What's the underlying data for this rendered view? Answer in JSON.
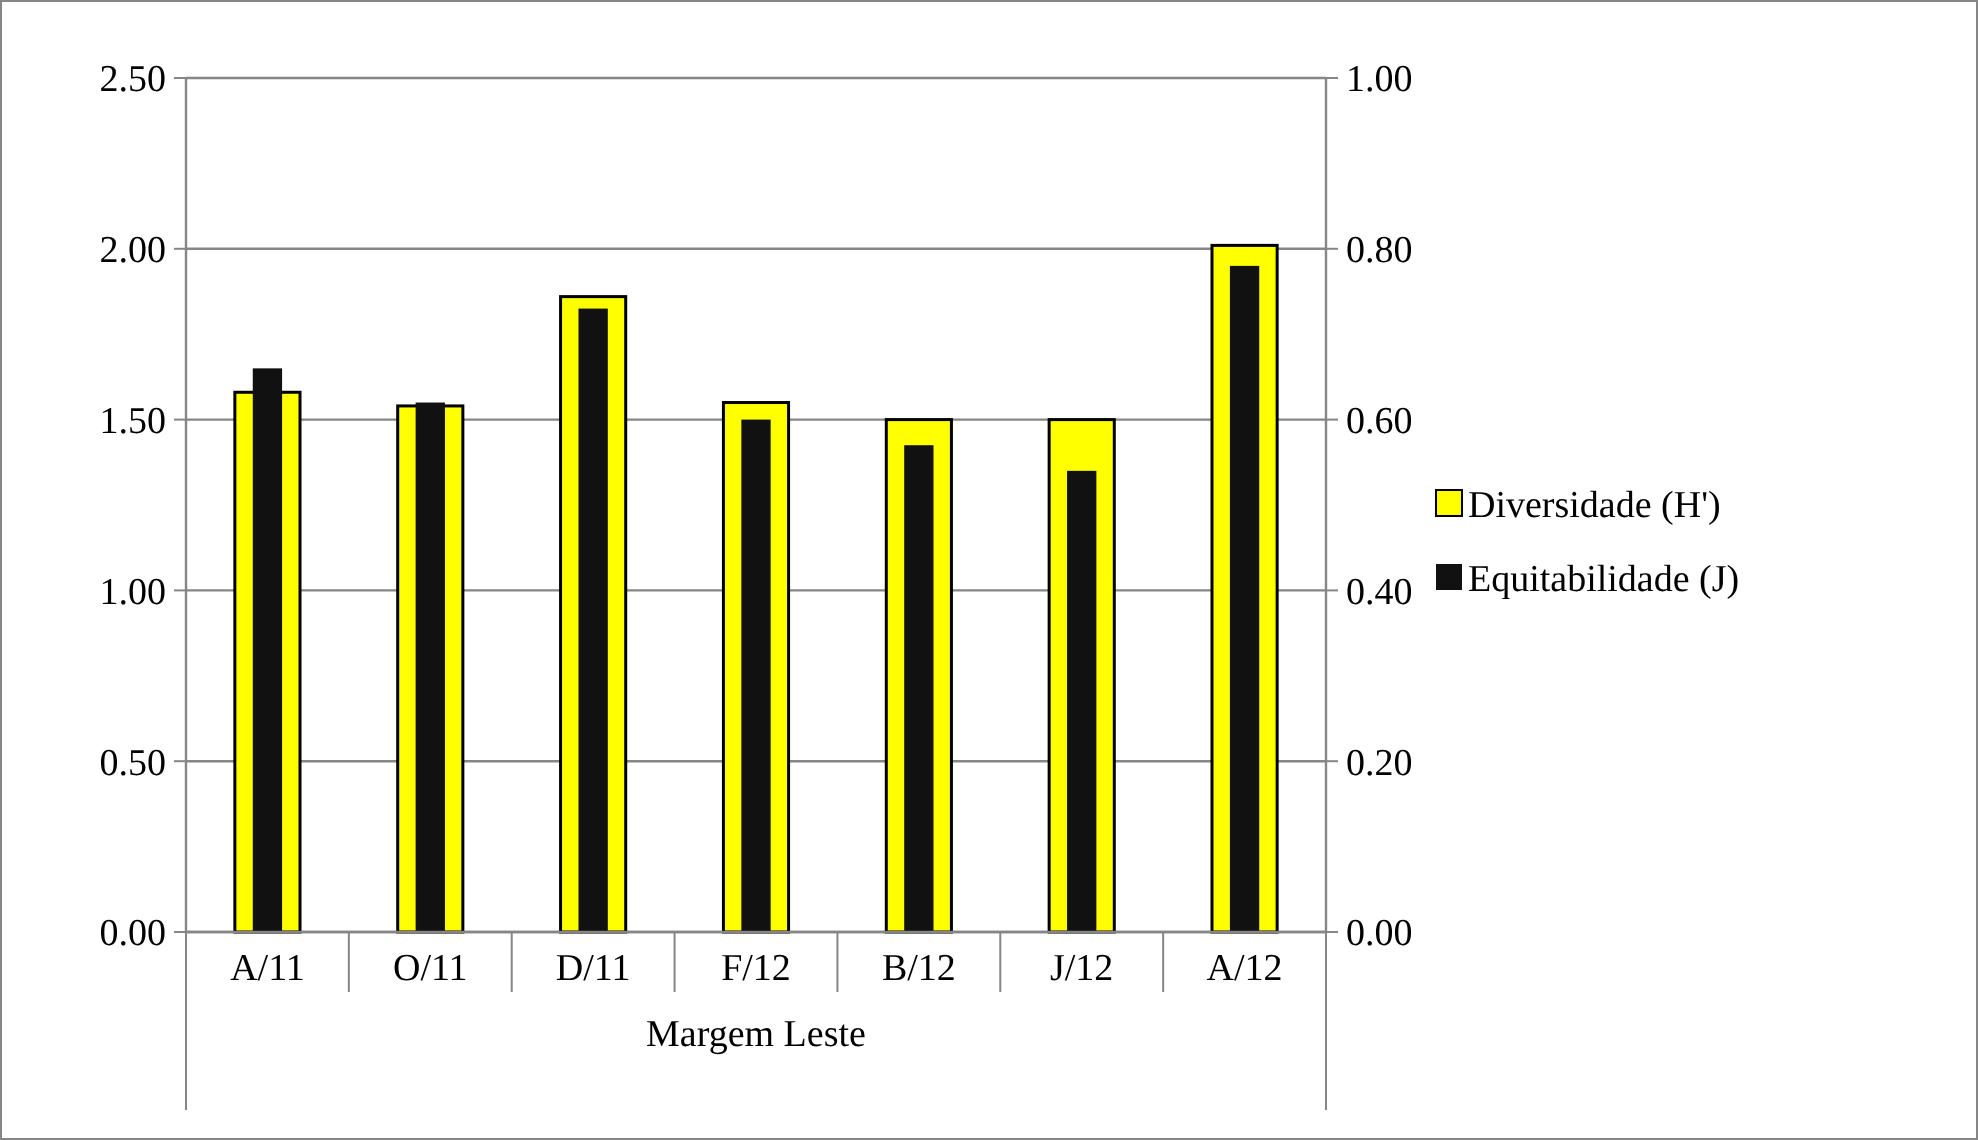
{
  "chart_data": {
    "type": "bar",
    "xlabel": "Margem Leste",
    "categories": [
      "A/11",
      "O/11",
      "D/11",
      "F/12",
      "B/12",
      "J/12",
      "A/12"
    ],
    "series": [
      {
        "name": "Diversidade (H')",
        "color": "#ffff00",
        "values": [
          1.58,
          1.54,
          1.86,
          1.55,
          1.5,
          1.5,
          2.01
        ]
      },
      {
        "name": "Equitabilidade (J)",
        "color": "#111111",
        "axis": "y2",
        "values": [
          0.66,
          0.62,
          0.73,
          0.6,
          0.57,
          0.54,
          0.78
        ]
      }
    ],
    "ylim": [
      0,
      2.5
    ],
    "yticks": [
      {
        "value": 0,
        "label": "0.00"
      },
      {
        "value": 0.5,
        "label": "0.50"
      },
      {
        "value": 1,
        "label": "1.00"
      },
      {
        "value": 1.5,
        "label": "1.50"
      },
      {
        "value": 2,
        "label": "2.00"
      },
      {
        "value": 2.5,
        "label": "2.50"
      }
    ],
    "y2lim": [
      0,
      1
    ],
    "y2ticks": [
      {
        "value": 0,
        "label": "0.00"
      },
      {
        "value": 0.2,
        "label": "0.20"
      },
      {
        "value": 0.4,
        "label": "0.40"
      },
      {
        "value": 0.6,
        "label": "0.60"
      },
      {
        "value": 0.8,
        "label": "0.80"
      },
      {
        "value": 1,
        "label": "1.00"
      }
    ],
    "grid": "y",
    "legend": "right"
  }
}
